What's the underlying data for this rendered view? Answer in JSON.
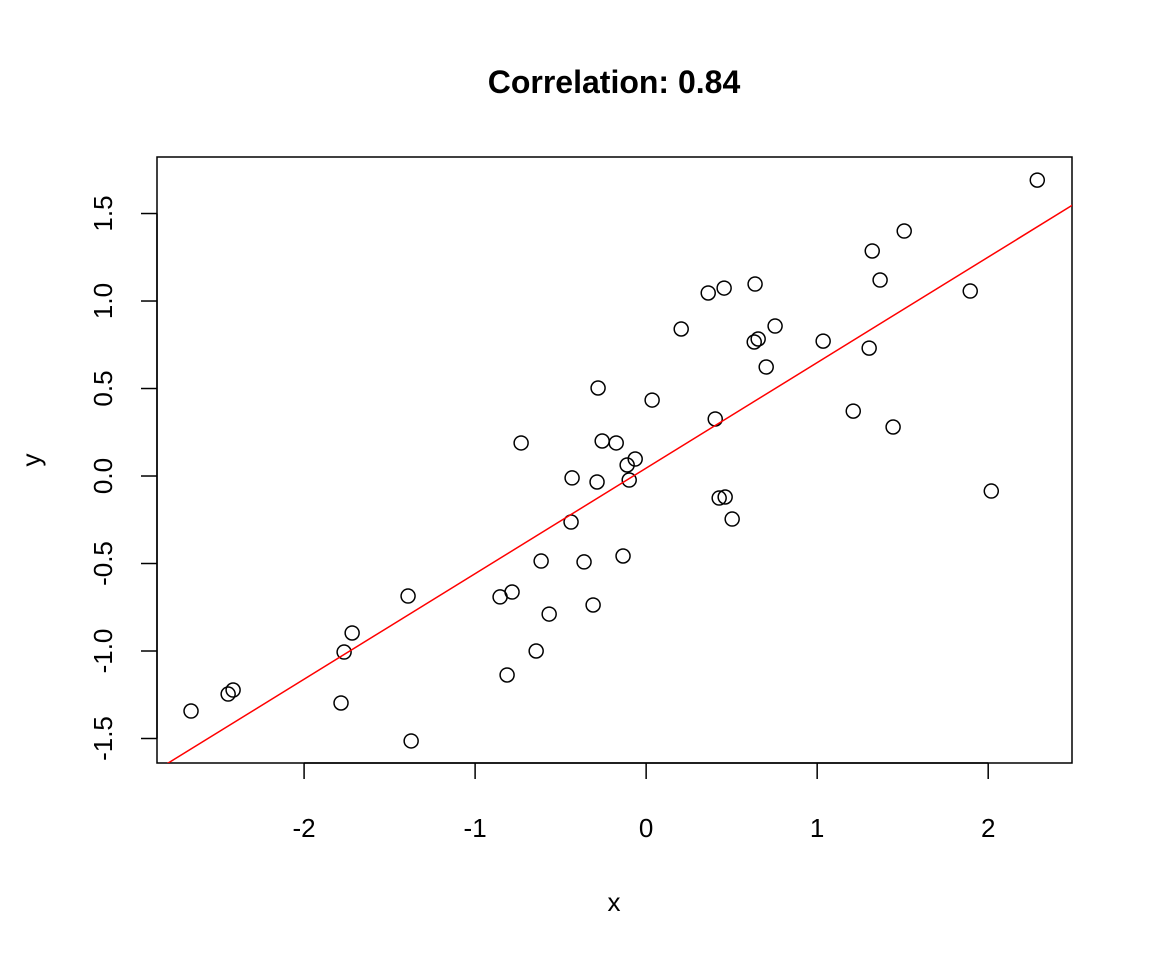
{
  "chart_data": {
    "type": "scatter",
    "title": "Correlation: 0.84",
    "xlabel": "x",
    "ylabel": "y",
    "xlim": [
      -2.86,
      2.49
    ],
    "ylim": [
      -1.64,
      1.823
    ],
    "xticks": [
      -2,
      -1,
      0,
      1,
      2
    ],
    "xtick_labels": [
      "-2",
      "-1",
      "0",
      "1",
      "2"
    ],
    "yticks": [
      -1.5,
      -1.0,
      -0.5,
      0.0,
      0.5,
      1.0,
      1.5
    ],
    "ytick_labels": [
      "-1.5",
      "-1.0",
      "-0.5",
      "0.0",
      "0.5",
      "1.0",
      "1.5"
    ],
    "grid": false,
    "point_color": "#000000",
    "fit_line": {
      "intercept": 0.045,
      "slope": 0.603,
      "color": "#ff0000"
    },
    "points": [
      [
        2.287,
        1.691
      ],
      [
        1.509,
        1.4
      ],
      [
        1.322,
        1.286
      ],
      [
        1.368,
        1.12
      ],
      [
        1.895,
        1.057
      ],
      [
        0.637,
        1.097
      ],
      [
        0.456,
        1.074
      ],
      [
        0.363,
        1.046
      ],
      [
        0.205,
        0.84
      ],
      [
        0.754,
        0.857
      ],
      [
        0.655,
        0.783
      ],
      [
        0.632,
        0.766
      ],
      [
        1.035,
        0.771
      ],
      [
        1.304,
        0.731
      ],
      [
        0.702,
        0.623
      ],
      [
        -0.281,
        0.503
      ],
      [
        0.035,
        0.434
      ],
      [
        1.211,
        0.371
      ],
      [
        0.404,
        0.326
      ],
      [
        1.444,
        0.28
      ],
      [
        -0.731,
        0.189
      ],
      [
        -0.257,
        0.2
      ],
      [
        -0.175,
        0.189
      ],
      [
        -0.064,
        0.097
      ],
      [
        -0.111,
        0.063
      ],
      [
        -0.433,
        -0.011
      ],
      [
        -0.287,
        -0.034
      ],
      [
        -0.099,
        -0.023
      ],
      [
        2.018,
        -0.086
      ],
      [
        0.427,
        -0.126
      ],
      [
        0.462,
        -0.12
      ],
      [
        0.503,
        -0.246
      ],
      [
        -0.439,
        -0.263
      ],
      [
        -0.135,
        -0.457
      ],
      [
        -0.614,
        -0.486
      ],
      [
        -0.363,
        -0.491
      ],
      [
        -1.392,
        -0.686
      ],
      [
        -0.854,
        -0.691
      ],
      [
        -0.784,
        -0.663
      ],
      [
        -0.567,
        -0.789
      ],
      [
        -0.31,
        -0.737
      ],
      [
        -1.719,
        -0.897
      ],
      [
        -1.766,
        -1.006
      ],
      [
        -0.643,
        -1.0
      ],
      [
        -0.813,
        -1.137
      ],
      [
        -1.784,
        -1.297
      ],
      [
        -2.415,
        -1.223
      ],
      [
        -2.444,
        -1.246
      ],
      [
        -2.661,
        -1.343
      ],
      [
        -1.374,
        -1.514
      ]
    ]
  }
}
